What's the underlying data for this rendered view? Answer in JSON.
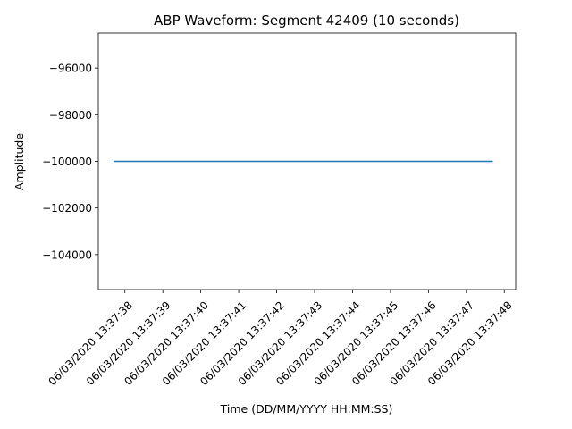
{
  "chart_data": {
    "type": "line",
    "title": "ABP Waveform: Segment 42409 (10 seconds)",
    "xlabel": "Time (DD/MM/YYYY HH:MM:SS)",
    "ylabel": "Amplitude",
    "x_ticks": [
      "06/03/2020 13:37:38",
      "06/03/2020 13:37:39",
      "06/03/2020 13:37:40",
      "06/03/2020 13:37:41",
      "06/03/2020 13:37:42",
      "06/03/2020 13:37:43",
      "06/03/2020 13:37:44",
      "06/03/2020 13:37:45",
      "06/03/2020 13:37:46",
      "06/03/2020 13:37:47",
      "06/03/2020 13:37:48"
    ],
    "y_ticks": [
      "−96000",
      "−98000",
      "−100000",
      "−102000",
      "−104000"
    ],
    "y_tick_values": [
      -96000,
      -98000,
      -100000,
      -102000,
      -104000
    ],
    "xlim": [
      "06/03/2020 13:37:37.3",
      "06/03/2020 13:37:48.3"
    ],
    "ylim": [
      -105500,
      -94500
    ],
    "series": [
      {
        "x": [
          "06/03/2020 13:37:37.7",
          "06/03/2020 13:37:47.7"
        ],
        "y": [
          -100000,
          -100000
        ],
        "color": "#1f77b4"
      }
    ],
    "grid": false,
    "legend": "none"
  }
}
